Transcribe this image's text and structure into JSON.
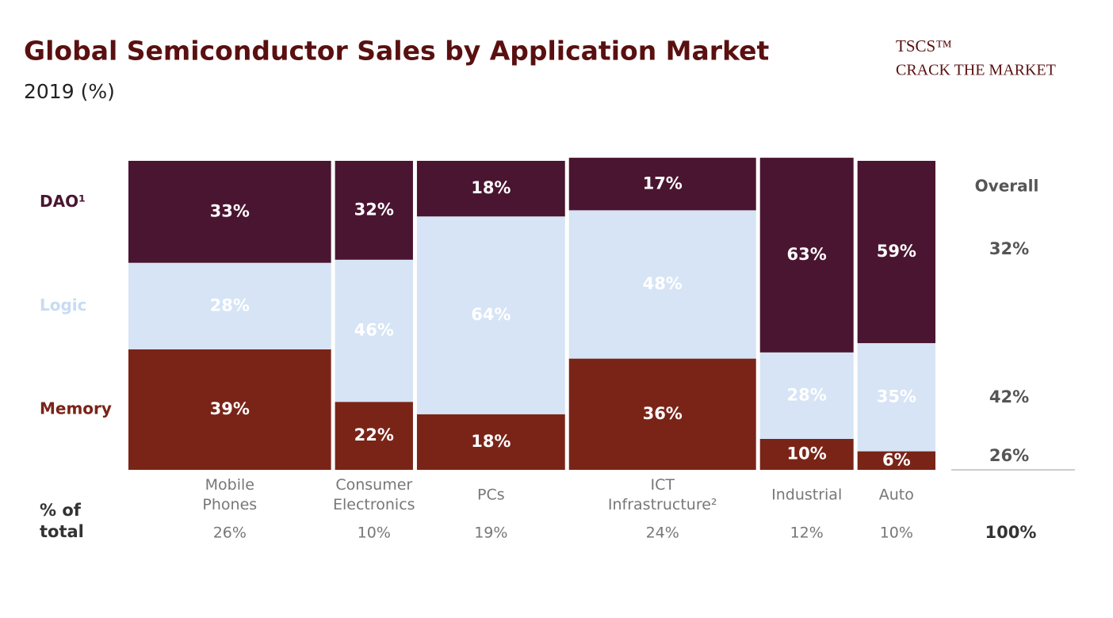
{
  "chart_data": {
    "type": "marimekko",
    "title": "Global Semiconductor Sales by Application Market",
    "subtitle": "2019 (%)",
    "brand": "TSCS™",
    "brand_tagline": "CRACK THE MARKET",
    "categories": [
      "Mobile Phones",
      "Consumer Electronics",
      "PCs",
      "ICT Infrastructure²",
      "Industrial",
      "Auto"
    ],
    "width_axis_label": "% of total",
    "widths": [
      26,
      10,
      19,
      24,
      12,
      10
    ],
    "width_labels": [
      "26%",
      "10%",
      "19%",
      "24%",
      "12%",
      "10%"
    ],
    "overall_label": "Overall",
    "total": 100,
    "total_label": "100%",
    "series": [
      {
        "name": "Memory",
        "color": "#7a2418",
        "label_color": "#ffffff",
        "values": [
          39,
          22,
          18,
          36,
          10,
          6
        ],
        "value_labels": [
          "39%",
          "22%",
          "18%",
          "36%",
          "10%",
          "6%"
        ],
        "overall": 26,
        "overall_value_label": "26%"
      },
      {
        "name": "Logic",
        "color": "#d6e4f5",
        "label_color": "#ffffff",
        "values": [
          28,
          46,
          64,
          48,
          28,
          35
        ],
        "value_labels": [
          "28%",
          "46%",
          "64%",
          "48%",
          "28%",
          "35%"
        ],
        "overall": 42,
        "overall_value_label": "42%"
      },
      {
        "name": "DAO¹",
        "color": "#4a1530",
        "label_color": "#ffffff",
        "values": [
          33,
          32,
          18,
          17,
          63,
          59
        ],
        "value_labels": [
          "33%",
          "32%",
          "18%",
          "17%",
          "63%",
          "59%"
        ],
        "overall": 32,
        "overall_value_label": "32%"
      }
    ],
    "ylim": [
      0,
      100
    ]
  }
}
